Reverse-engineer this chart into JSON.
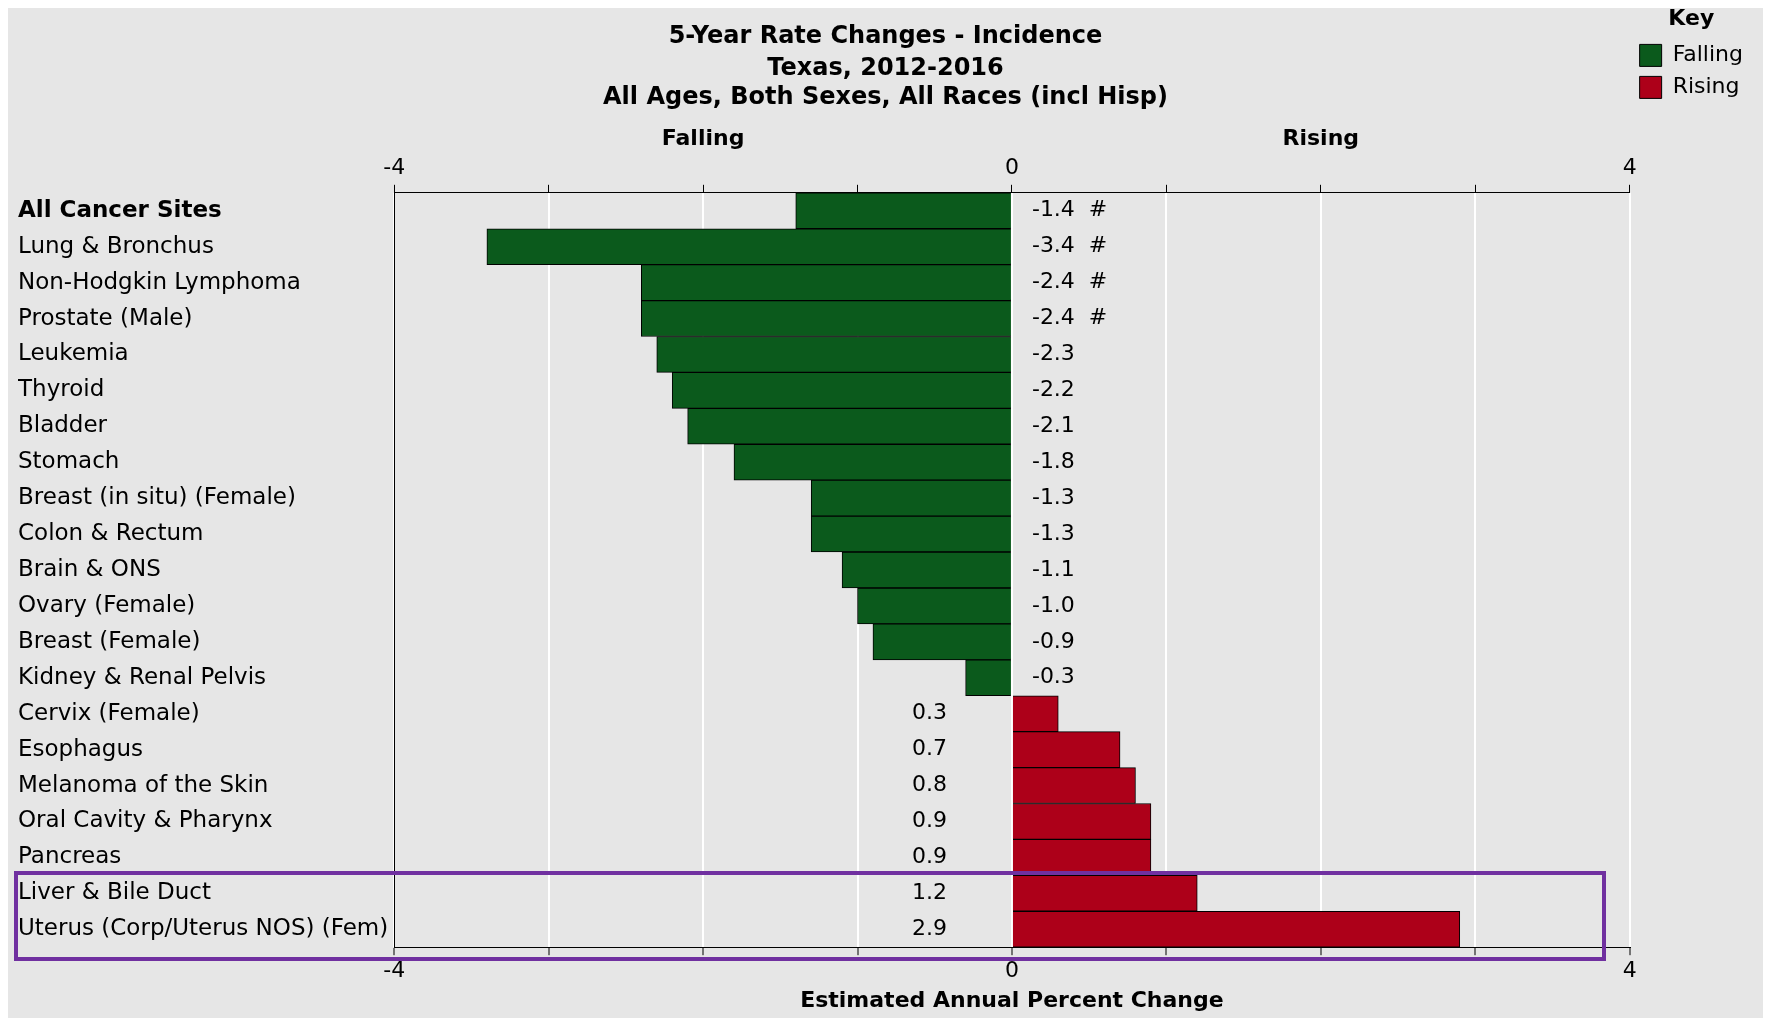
{
  "chart_data": {
    "type": "bar",
    "orientation": "horizontal",
    "title": "5-Year Rate Changes - Incidence",
    "subtitle": "Texas, 2012-2016\nAll Ages, Both Sexes, All Races (incl Hisp)",
    "xlabel": "Estimated Annual Percent Change",
    "legend_title": "Key",
    "legend": "top right",
    "grid": "x",
    "annotations": [
      "Falling",
      "Rising"
    ],
    "categories": [
      "All Cancer Sites",
      "Lung & Bronchus",
      "Non-Hodgkin Lymphoma",
      "Prostate (Male)",
      "Leukemia",
      "Thyroid",
      "Bladder",
      "Stomach",
      "Breast (in situ) (Female)",
      "Colon & Rectum",
      "Brain & ONS",
      "Ovary (Female)",
      "Breast (Female)",
      "Kidney & Renal Pelvis",
      "Cervix (Female)",
      "Esophagus",
      "Melanoma of the Skin",
      "Oral Cavity & Pharynx",
      "Pancreas",
      "Liver & Bile Duct",
      "Uterus (Corp/Uterus NOS) (Fem)"
    ],
    "series": [
      {
        "name": "Falling",
        "color": "#0b5a1c",
        "values": [
          -1.4,
          -3.4,
          -2.4,
          -2.4,
          -2.3,
          -2.2,
          -2.1,
          -1.8,
          -1.3,
          -1.3,
          -1.1,
          -1.0,
          -0.9,
          -0.3,
          null,
          null,
          null,
          null,
          null,
          null,
          null
        ],
        "value_labels": [
          "-1.4  #",
          "-3.4  #",
          "-2.4  #",
          "-2.4  #",
          "-2.3",
          "-2.2",
          "-2.1",
          "-1.8",
          "-1.3",
          "-1.3",
          "-1.1",
          "-1.0",
          "-0.9",
          "-0.3",
          null,
          null,
          null,
          null,
          null,
          null,
          null
        ]
      },
      {
        "name": "Rising",
        "color": "#ad0019",
        "values": [
          null,
          null,
          null,
          null,
          null,
          null,
          null,
          null,
          null,
          null,
          null,
          null,
          null,
          null,
          0.3,
          0.7,
          0.8,
          0.9,
          0.9,
          1.2,
          2.9
        ],
        "value_labels": [
          null,
          null,
          null,
          null,
          null,
          null,
          null,
          null,
          null,
          null,
          null,
          null,
          null,
          null,
          "0.3",
          "0.7",
          "0.8",
          "0.9",
          "0.9",
          "1.2",
          "2.9"
        ]
      }
    ],
    "xlim": [
      -4,
      4
    ],
    "xticks": [
      -4,
      {
        "value": -3,
        "label": null
      },
      {
        "value": -2,
        "label": null
      },
      {
        "value": -1,
        "label": null
      },
      0,
      {
        "value": 1,
        "label": null
      },
      {
        "value": 2,
        "label": null
      },
      {
        "value": 3,
        "label": null
      },
      4
    ],
    "x2lim": [
      -4,
      4
    ],
    "x2ticks": [
      -4,
      {
        "value": -3,
        "label": null
      },
      {
        "value": -2,
        "label": null
      },
      {
        "value": -1,
        "label": null
      },
      0,
      {
        "value": 1,
        "label": null
      },
      {
        "value": 2,
        "label": null
      },
      {
        "value": 3,
        "label": null
      },
      4
    ]
  }
}
